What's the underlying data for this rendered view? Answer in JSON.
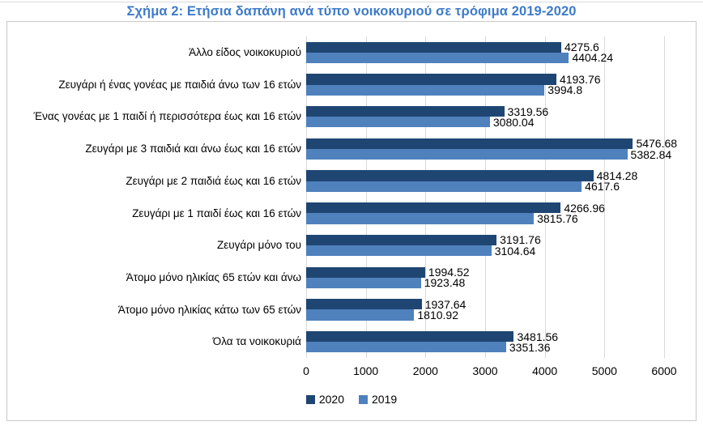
{
  "chart_data": {
    "type": "bar",
    "orientation": "horizontal",
    "title": "Σχήμα 2: Ετήσια δαπάνη ανά τύπο νοικοκυριού σε τρόφιμα 2019-2020",
    "title_color": "#3e7bc9",
    "categories": [
      "Άλλο είδος  νοικοκυριού",
      "Ζευγάρι ή ένας γονέας με παιδιά άνω των 16 ετών",
      "Ένας γονέας με 1 παιδί ή περισσότερα έως και 16 ετών",
      "Ζευγάρι με 3 παιδιά και άνω έως και 16 ετών",
      "Ζευγάρι με 2 παιδιά έως και 16 ετών",
      "Ζευγάρι με 1 παιδί έως και 16 ετών",
      "Ζευγάρι μόνο του",
      "Άτομο μόνο ηλικίας 65 ετών και άνω",
      "Άτομο μόνο ηλικίας κάτω των 65 ετών",
      "Όλα τα νοικοκυριά"
    ],
    "series": [
      {
        "name": "2020",
        "color": "#1f4672",
        "values": [
          4275.6,
          4193.76,
          3319.56,
          5476.68,
          4814.28,
          4266.96,
          3191.76,
          1994.52,
          1937.64,
          3481.56
        ]
      },
      {
        "name": "2019",
        "color": "#4f81bd",
        "values": [
          4404.24,
          3994.8,
          3080.04,
          5382.84,
          4617.6,
          3815.76,
          3104.64,
          1923.48,
          1810.92,
          3351.36
        ]
      }
    ],
    "xlim": [
      0,
      6000
    ],
    "x_ticks": [
      0,
      1000,
      2000,
      3000,
      4000,
      5000,
      6000
    ],
    "grid": true,
    "gridline_color": "#d9d9d9",
    "legend_position": "bottom",
    "value_labels": "outside-end"
  }
}
